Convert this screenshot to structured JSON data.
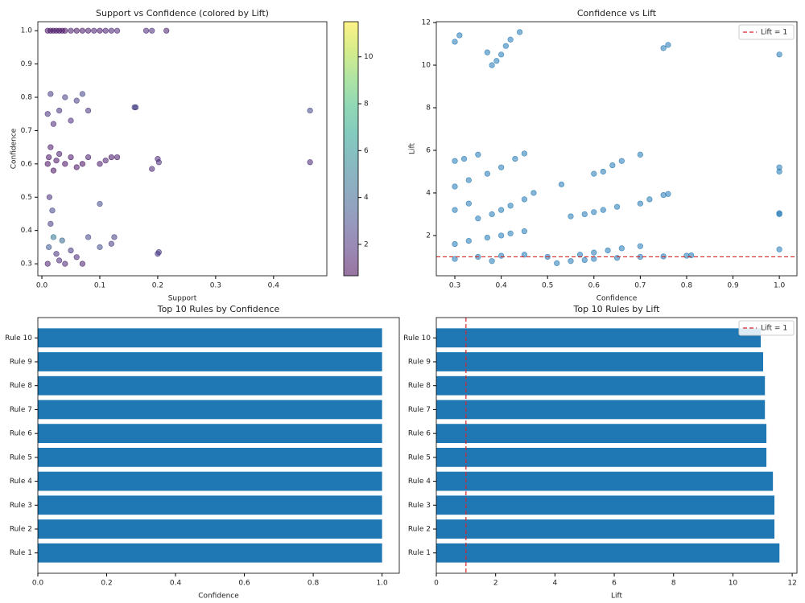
{
  "chart_data": [
    {
      "type": "scatter",
      "title": "Support vs Confidence (colored by Lift)",
      "xlabel": "Support",
      "ylabel": "Confidence",
      "x": [
        0.01,
        0.015,
        0.02,
        0.025,
        0.03,
        0.035,
        0.04,
        0.05,
        0.06,
        0.07,
        0.08,
        0.09,
        0.1,
        0.11,
        0.12,
        0.13,
        0.18,
        0.19,
        0.215,
        0.01,
        0.012,
        0.015,
        0.02,
        0.025,
        0.03,
        0.04,
        0.05,
        0.06,
        0.07,
        0.08,
        0.1,
        0.11,
        0.12,
        0.13,
        0.19,
        0.2,
        0.202,
        0.463,
        0.01,
        0.015,
        0.02,
        0.03,
        0.04,
        0.05,
        0.06,
        0.07,
        0.08,
        0.16,
        0.162,
        0.463,
        0.01,
        0.012,
        0.015,
        0.02,
        0.025,
        0.03,
        0.035,
        0.04,
        0.05,
        0.06,
        0.07,
        0.08,
        0.1,
        0.12,
        0.125,
        0.2,
        0.202,
        0.1,
        0.013,
        0.018
      ],
      "y": [
        1.0,
        1.0,
        1.0,
        1.0,
        1.0,
        1.0,
        1.0,
        1.0,
        1.0,
        1.0,
        1.0,
        1.0,
        1.0,
        1.0,
        1.0,
        1.0,
        1.0,
        1.0,
        1.0,
        0.6,
        0.62,
        0.65,
        0.58,
        0.61,
        0.63,
        0.6,
        0.62,
        0.59,
        0.6,
        0.62,
        0.6,
        0.61,
        0.62,
        0.62,
        0.585,
        0.615,
        0.605,
        0.605,
        0.75,
        0.81,
        0.72,
        0.76,
        0.8,
        0.73,
        0.79,
        0.81,
        0.76,
        0.77,
        0.77,
        0.76,
        0.3,
        0.35,
        0.42,
        0.38,
        0.33,
        0.31,
        0.37,
        0.3,
        0.34,
        0.32,
        0.3,
        0.38,
        0.48,
        0.36,
        0.38,
        0.33,
        0.335,
        0.35,
        0.5,
        0.46
      ],
      "color_values": [
        1.1,
        1.2,
        1.0,
        1.3,
        1.1,
        1.2,
        1.0,
        1.4,
        1.1,
        1.2,
        1.3,
        1.5,
        1.2,
        1.4,
        1.6,
        1.8,
        1.7,
        2.0,
        1.5,
        1.0,
        1.1,
        1.2,
        1.0,
        1.1,
        1.3,
        1.0,
        1.2,
        1.1,
        1.0,
        1.4,
        1.3,
        1.5,
        1.2,
        1.4,
        1.6,
        1.8,
        1.9,
        1.7,
        2.0,
        2.4,
        1.8,
        2.2,
        2.6,
        1.9,
        2.5,
        2.8,
        2.1,
        2.7,
        2.6,
        2.9,
        1.5,
        3.5,
        2.5,
        4.8,
        2.0,
        1.8,
        4.2,
        1.6,
        2.3,
        1.7,
        1.5,
        2.9,
        3.0,
        2.4,
        2.6,
        2.2,
        2.5,
        3.1,
        2.0,
        2.8
      ],
      "colormap": "viridis",
      "clim": [
        0.66,
        11.5
      ],
      "cticks": [
        2,
        4,
        6,
        8,
        10
      ],
      "xlim": [
        -0.007,
        0.492
      ],
      "xticks": [
        {
          "value": 0,
          "label": "0.0"
        },
        0.1,
        0.2,
        0.3,
        0.4
      ],
      "ylim": [
        0.264,
        1.027
      ],
      "yticks": [
        0.3,
        0.4,
        0.5,
        0.6,
        0.7,
        0.8,
        0.9,
        {
          "value": 1,
          "label": "1.0"
        }
      ]
    },
    {
      "type": "scatter",
      "title": "Confidence vs Lift",
      "xlabel": "Confidence",
      "ylabel": "Lift",
      "color": "#1f77b4",
      "x": [
        0.3,
        0.31,
        0.37,
        0.38,
        0.39,
        0.4,
        0.41,
        0.42,
        0.44,
        0.75,
        0.76,
        1.0,
        1.0,
        1.0,
        1.0,
        1.0,
        1.0,
        0.3,
        0.32,
        0.35,
        0.37,
        0.4,
        0.43,
        0.45,
        0.3,
        0.33,
        0.3,
        0.33,
        0.35,
        0.38,
        0.4,
        0.42,
        0.45,
        0.47,
        0.3,
        0.33,
        0.37,
        0.4,
        0.42,
        0.45,
        0.3,
        0.35,
        0.4,
        0.45,
        0.38,
        0.53,
        0.55,
        0.58,
        0.6,
        0.62,
        0.65,
        0.7,
        0.72,
        0.75,
        0.76,
        0.6,
        0.62,
        0.64,
        0.66,
        0.7,
        0.57,
        0.6,
        0.63,
        0.66,
        0.7,
        0.55,
        0.58,
        0.6,
        0.65,
        0.7,
        0.75,
        0.8,
        0.81,
        0.52,
        0.5
      ],
      "y": [
        11.1,
        11.4,
        10.6,
        10.0,
        10.2,
        10.5,
        10.9,
        11.2,
        11.55,
        10.8,
        10.95,
        10.5,
        5.2,
        5.0,
        3.05,
        3.0,
        1.35,
        5.5,
        5.6,
        5.8,
        4.9,
        5.2,
        5.6,
        5.85,
        4.3,
        4.6,
        3.2,
        3.5,
        2.8,
        3.0,
        3.2,
        3.4,
        3.7,
        4.0,
        1.6,
        1.75,
        1.9,
        2.0,
        2.1,
        2.2,
        0.9,
        1.0,
        1.05,
        1.1,
        0.8,
        4.4,
        2.9,
        3.0,
        3.1,
        3.2,
        3.35,
        3.5,
        3.7,
        3.9,
        3.95,
        4.9,
        5.0,
        5.3,
        5.5,
        5.8,
        1.1,
        1.2,
        1.3,
        1.4,
        1.5,
        0.8,
        0.85,
        0.9,
        0.95,
        1.0,
        1.02,
        1.05,
        1.07,
        0.7,
        1.0
      ],
      "reference_lines": [
        {
          "axis": "y",
          "value": 1,
          "label": "Lift = 1",
          "color": "#d62728"
        }
      ],
      "legend": "upper right",
      "xlim": [
        0.26,
        1.038
      ],
      "xticks": [
        0.3,
        0.4,
        0.5,
        0.6,
        0.7,
        0.8,
        0.9,
        {
          "value": 1,
          "label": "1.0"
        }
      ],
      "ylim": [
        0.11,
        12.04
      ],
      "yticks": [
        2,
        4,
        6,
        8,
        10,
        12
      ]
    },
    {
      "type": "barh",
      "title": "Top 10 Rules by Confidence",
      "xlabel": "Confidence",
      "color": "#1f77b4",
      "categories": [
        "Rule 1",
        "Rule 2",
        "Rule 3",
        "Rule 4",
        "Rule 5",
        "Rule 6",
        "Rule 7",
        "Rule 8",
        "Rule 9",
        "Rule 10"
      ],
      "values": [
        1,
        1,
        1,
        1,
        1,
        1,
        1,
        1,
        1,
        1
      ],
      "xlim": [
        0,
        1.05
      ],
      "xticks": [
        {
          "value": 0,
          "label": "0.0"
        },
        0.2,
        0.4,
        0.6,
        0.8,
        {
          "value": 1,
          "label": "1.0"
        }
      ]
    },
    {
      "type": "barh",
      "title": "Top 10 Rules by Lift",
      "xlabel": "Lift",
      "color": "#1f77b4",
      "categories": [
        "Rule 1",
        "Rule 2",
        "Rule 3",
        "Rule 4",
        "Rule 5",
        "Rule 6",
        "Rule 7",
        "Rule 8",
        "Rule 9",
        "Rule 10"
      ],
      "values": [
        11.57,
        11.4,
        11.4,
        11.35,
        11.13,
        11.13,
        11.08,
        11.08,
        11.02,
        10.94
      ],
      "reference_lines": [
        {
          "axis": "x",
          "value": 1,
          "label": "Lift = 1",
          "color": "#d62728"
        }
      ],
      "legend": "upper right",
      "xlim": [
        0,
        12.16
      ],
      "xticks": [
        0,
        2,
        4,
        6,
        8,
        10,
        12
      ]
    }
  ]
}
